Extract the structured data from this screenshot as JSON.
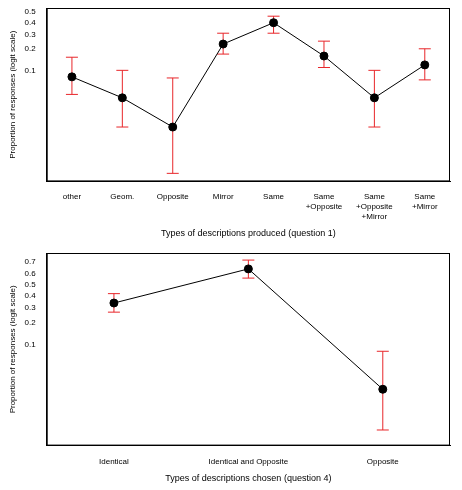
{
  "chart_data": [
    {
      "type": "line",
      "y_label": "Proportion of responses (logit scale)",
      "x_label": "Types of descriptions produced (question 1)",
      "categories": [
        "other",
        "Geom.",
        "Opposite",
        "Mirror",
        "Same",
        "Same\n+Opposite",
        "Same\n+Opposite\n+Mirror",
        "Same\n+Mirror"
      ],
      "values": [
        0.08,
        0.038,
        0.013,
        0.23,
        0.4,
        0.16,
        0.038,
        0.12
      ],
      "error_low": [
        0.043,
        0.013,
        0.0023,
        0.17,
        0.31,
        0.11,
        0.013,
        0.072
      ],
      "error_high": [
        0.154,
        0.1,
        0.077,
        0.31,
        0.46,
        0.25,
        0.1,
        0.2
      ],
      "color": "#000000",
      "marker": "circle",
      "ylim": [
        0.0017,
        0.537
      ],
      "yticks": [
        0.1,
        0.2,
        0.3,
        0.4,
        0.5
      ],
      "grid": false
    },
    {
      "type": "line",
      "y_label": "Proportion of responses (logit scale)",
      "x_label": "Types of descriptions chosen (question 4)",
      "categories": [
        "Identical",
        "Identical and Opposite",
        "Opposite"
      ],
      "values": [
        0.34,
        0.64,
        0.022
      ],
      "error_low": [
        0.27,
        0.56,
        0.0051
      ],
      "error_high": [
        0.42,
        0.71,
        0.082
      ],
      "color": "#000000",
      "marker": "circle",
      "ylim": [
        0.0029,
        0.76
      ],
      "yticks": [
        0.1,
        0.2,
        0.3,
        0.4,
        0.5,
        0.6,
        0.7
      ],
      "grid": false
    }
  ]
}
